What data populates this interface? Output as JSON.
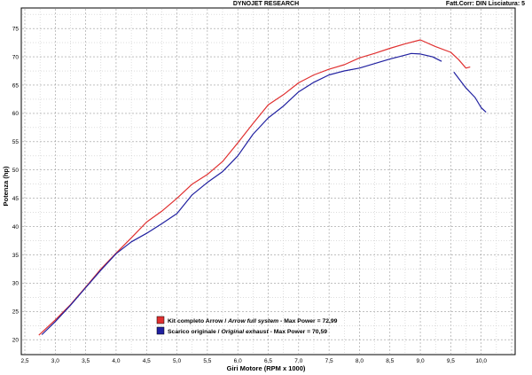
{
  "header": {
    "title": "DYNOJET RESEARCH",
    "correction": "Fatt.Corr: DIN  Lisciatura: 5"
  },
  "chart_data": {
    "type": "line",
    "xlabel": "Giri Motore (RPM x 1000)",
    "ylabel": "Potenza (hp)",
    "xlim": [
      2.5,
      10.5
    ],
    "ylim": [
      18,
      78
    ],
    "xticks": [
      "2,5",
      "3,0",
      "3,5",
      "4,0",
      "4,5",
      "5,0",
      "5,5",
      "6,0",
      "6,5",
      "7,0",
      "7,5",
      "8,0",
      "8,5",
      "9,0",
      "9,5",
      "10,0"
    ],
    "yticks": [
      "20",
      "25",
      "30",
      "35",
      "40",
      "45",
      "50",
      "55",
      "60",
      "65",
      "70",
      "75"
    ],
    "grid": true,
    "legend_position": "bottom-center",
    "series": [
      {
        "name": "Kit completo Arrow / Arrow full system - Max Power = 72,99",
        "label_plain": "Kit completo Arrow / ",
        "label_italic": "Arrow full system",
        "label_tail": " - Max Power = 72,99",
        "color": "#e03030",
        "points": [
          [
            2.73,
            20.8
          ],
          [
            3.0,
            23.5
          ],
          [
            3.25,
            26.2
          ],
          [
            3.5,
            29.3
          ],
          [
            3.75,
            32.5
          ],
          [
            4.0,
            35.3
          ],
          [
            4.25,
            38.0
          ],
          [
            4.5,
            40.8
          ],
          [
            4.75,
            42.7
          ],
          [
            5.0,
            45.0
          ],
          [
            5.25,
            47.5
          ],
          [
            5.5,
            49.2
          ],
          [
            5.75,
            51.5
          ],
          [
            6.0,
            54.8
          ],
          [
            6.25,
            58.2
          ],
          [
            6.5,
            61.5
          ],
          [
            6.75,
            63.3
          ],
          [
            7.0,
            65.4
          ],
          [
            7.25,
            66.8
          ],
          [
            7.5,
            67.8
          ],
          [
            7.75,
            68.6
          ],
          [
            8.0,
            69.8
          ],
          [
            8.25,
            70.6
          ],
          [
            8.5,
            71.5
          ],
          [
            8.75,
            72.3
          ],
          [
            9.0,
            72.99
          ],
          [
            9.25,
            71.8
          ],
          [
            9.5,
            70.8
          ],
          [
            9.63,
            69.5
          ],
          [
            9.75,
            68.0
          ],
          [
            9.82,
            68.2
          ]
        ]
      },
      {
        "name": "Scarico originale / Original exhaust - Max Power = 70,59",
        "label_plain": "Scarico originale / ",
        "label_italic": "Original exhaust",
        "label_tail": " - Max Power = 70,59",
        "color": "#2020a0",
        "points": [
          [
            2.78,
            20.9
          ],
          [
            3.0,
            23.2
          ],
          [
            3.25,
            26.1
          ],
          [
            3.5,
            29.2
          ],
          [
            3.75,
            32.3
          ],
          [
            4.0,
            35.2
          ],
          [
            4.25,
            37.3
          ],
          [
            4.5,
            38.8
          ],
          [
            4.75,
            40.5
          ],
          [
            5.0,
            42.3
          ],
          [
            5.25,
            45.6
          ],
          [
            5.5,
            47.8
          ],
          [
            5.75,
            49.7
          ],
          [
            6.0,
            52.5
          ],
          [
            6.25,
            56.3
          ],
          [
            6.5,
            59.2
          ],
          [
            6.75,
            61.3
          ],
          [
            7.0,
            63.8
          ],
          [
            7.25,
            65.5
          ],
          [
            7.5,
            66.8
          ],
          [
            7.75,
            67.5
          ],
          [
            8.0,
            68.0
          ],
          [
            8.25,
            68.8
          ],
          [
            8.5,
            69.6
          ],
          [
            8.75,
            70.3
          ],
          [
            8.85,
            70.59
          ],
          [
            9.0,
            70.5
          ],
          [
            9.2,
            70.0
          ],
          [
            9.35,
            69.2
          ],
          [
            null,
            null
          ],
          [
            9.55,
            67.3
          ],
          [
            9.75,
            64.5
          ],
          [
            9.9,
            62.8
          ],
          [
            10.0,
            61.0
          ],
          [
            10.08,
            60.2
          ]
        ]
      }
    ]
  }
}
